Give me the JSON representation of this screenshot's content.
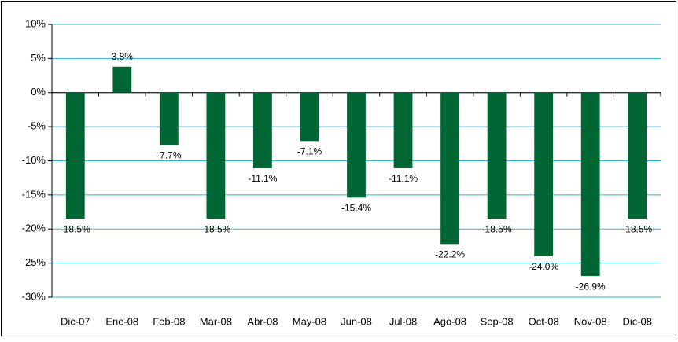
{
  "chart_data": {
    "type": "bar",
    "categories": [
      "Dic-07",
      "Ene-08",
      "Feb-08",
      "Mar-08",
      "Abr-08",
      "May-08",
      "Jun-08",
      "Jul-08",
      "Ago-08",
      "Sep-08",
      "Oct-08",
      "Nov-08",
      "Dic-08"
    ],
    "values": [
      -18.5,
      3.8,
      -7.7,
      -18.5,
      -11.1,
      -7.1,
      -15.4,
      -11.1,
      -22.2,
      -18.5,
      -24.0,
      -26.9,
      -18.5
    ],
    "value_labels": [
      "-18.5%",
      "3.8%",
      "-7.7%",
      "-18.5%",
      "-11.1%",
      "-7.1%",
      "-15.4%",
      "-11.1%",
      "-22.2%",
      "-18.5%",
      "-24.0%",
      "-26.9%",
      "-18.5%"
    ],
    "color": "#006633",
    "ylim": [
      -30,
      10
    ],
    "yticks": [
      {
        "value": -30,
        "label": "-30%"
      },
      {
        "value": -25,
        "label": "-25%"
      },
      {
        "value": -20,
        "label": "-20%"
      },
      {
        "value": -15,
        "label": "-15%"
      },
      {
        "value": -10,
        "label": "-10%"
      },
      {
        "value": -5,
        "label": "-5%"
      },
      {
        "value": 0,
        "label": "0%"
      },
      {
        "value": 5,
        "label": "5%"
      },
      {
        "value": 10,
        "label": "10%"
      }
    ],
    "grid": true,
    "grid_color": "#33b5cc"
  }
}
